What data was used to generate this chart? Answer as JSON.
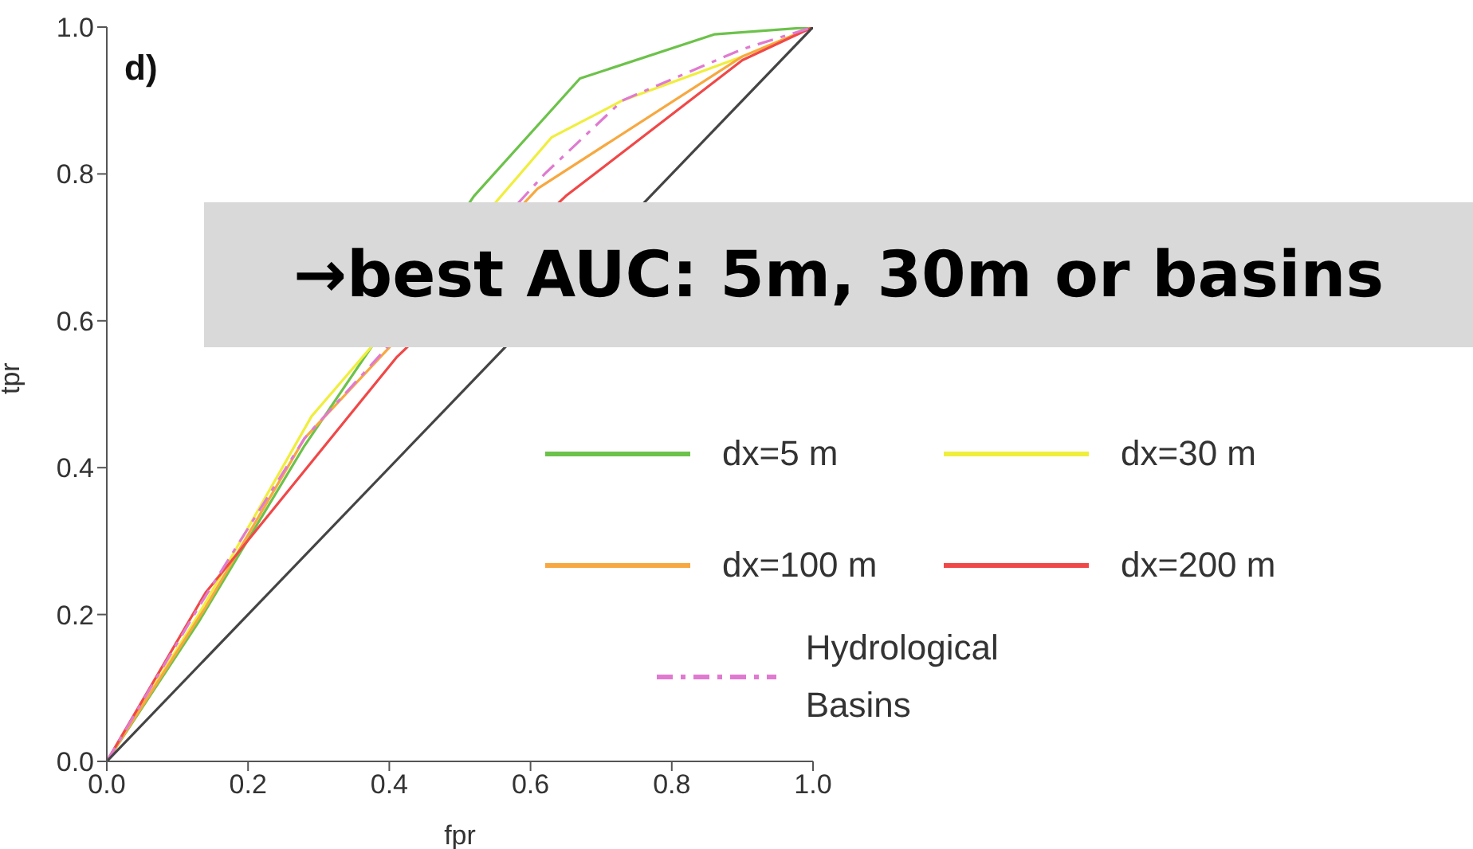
{
  "chart_data": {
    "type": "line",
    "xlabel": "fpr",
    "ylabel": "tpr",
    "xlim": [
      0,
      1
    ],
    "ylim": [
      0,
      1
    ],
    "xticks": [
      {
        "value": 0,
        "label": "0.0"
      },
      {
        "value": 0.2,
        "label": "0.2"
      },
      {
        "value": 0.4,
        "label": "0.4"
      },
      {
        "value": 0.6,
        "label": "0.6"
      },
      {
        "value": 0.8,
        "label": "0.8"
      },
      {
        "value": 1,
        "label": "1.0"
      }
    ],
    "yticks": [
      {
        "value": 0,
        "label": "0.0"
      },
      {
        "value": 0.2,
        "label": "0.2"
      },
      {
        "value": 0.4,
        "label": "0.4"
      },
      {
        "value": 0.6,
        "label": "0.6"
      },
      {
        "value": 0.8,
        "label": "0.8"
      },
      {
        "value": 1,
        "label": "1.0"
      }
    ],
    "legend": "bottom right",
    "grid": false,
    "annotations": [
      "d)",
      "→best AUC: 5m, 30m or basins"
    ],
    "series": [
      {
        "name": "dx=5 m",
        "color": "#6cc24a",
        "x": [
          0,
          0.13,
          0.28,
          0.52,
          0.67,
          0.86,
          1
        ],
        "values": [
          0,
          0.19,
          0.43,
          0.77,
          0.93,
          0.99,
          1
        ]
      },
      {
        "name": "dx=30 m",
        "color": "#f0ee3c",
        "x": [
          0,
          0.13,
          0.29,
          0.63,
          0.73,
          0.9,
          1
        ],
        "values": [
          0,
          0.2,
          0.47,
          0.85,
          0.9,
          0.96,
          1
        ]
      },
      {
        "name": "dx=100 m",
        "color": "#f7a840",
        "x": [
          0,
          0.14,
          0.28,
          0.61,
          0.9,
          1
        ],
        "values": [
          0,
          0.21,
          0.44,
          0.78,
          0.96,
          1
        ]
      },
      {
        "name": "dx=200 m",
        "color": "#f04848",
        "x": [
          0,
          0.14,
          0.41,
          0.65,
          0.9,
          1
        ],
        "values": [
          0,
          0.23,
          0.55,
          0.77,
          0.955,
          1
        ]
      },
      {
        "name": "Hydrological Basins",
        "color": "#e07ad0",
        "line_style": "dashed",
        "x": [
          0,
          0.13,
          0.28,
          0.62,
          0.73,
          0.9,
          1
        ],
        "values": [
          0,
          0.21,
          0.44,
          0.8,
          0.9,
          0.97,
          1
        ]
      },
      {
        "color": "#444444",
        "x": [
          0,
          1
        ],
        "values": [
          0,
          1
        ]
      }
    ]
  }
}
